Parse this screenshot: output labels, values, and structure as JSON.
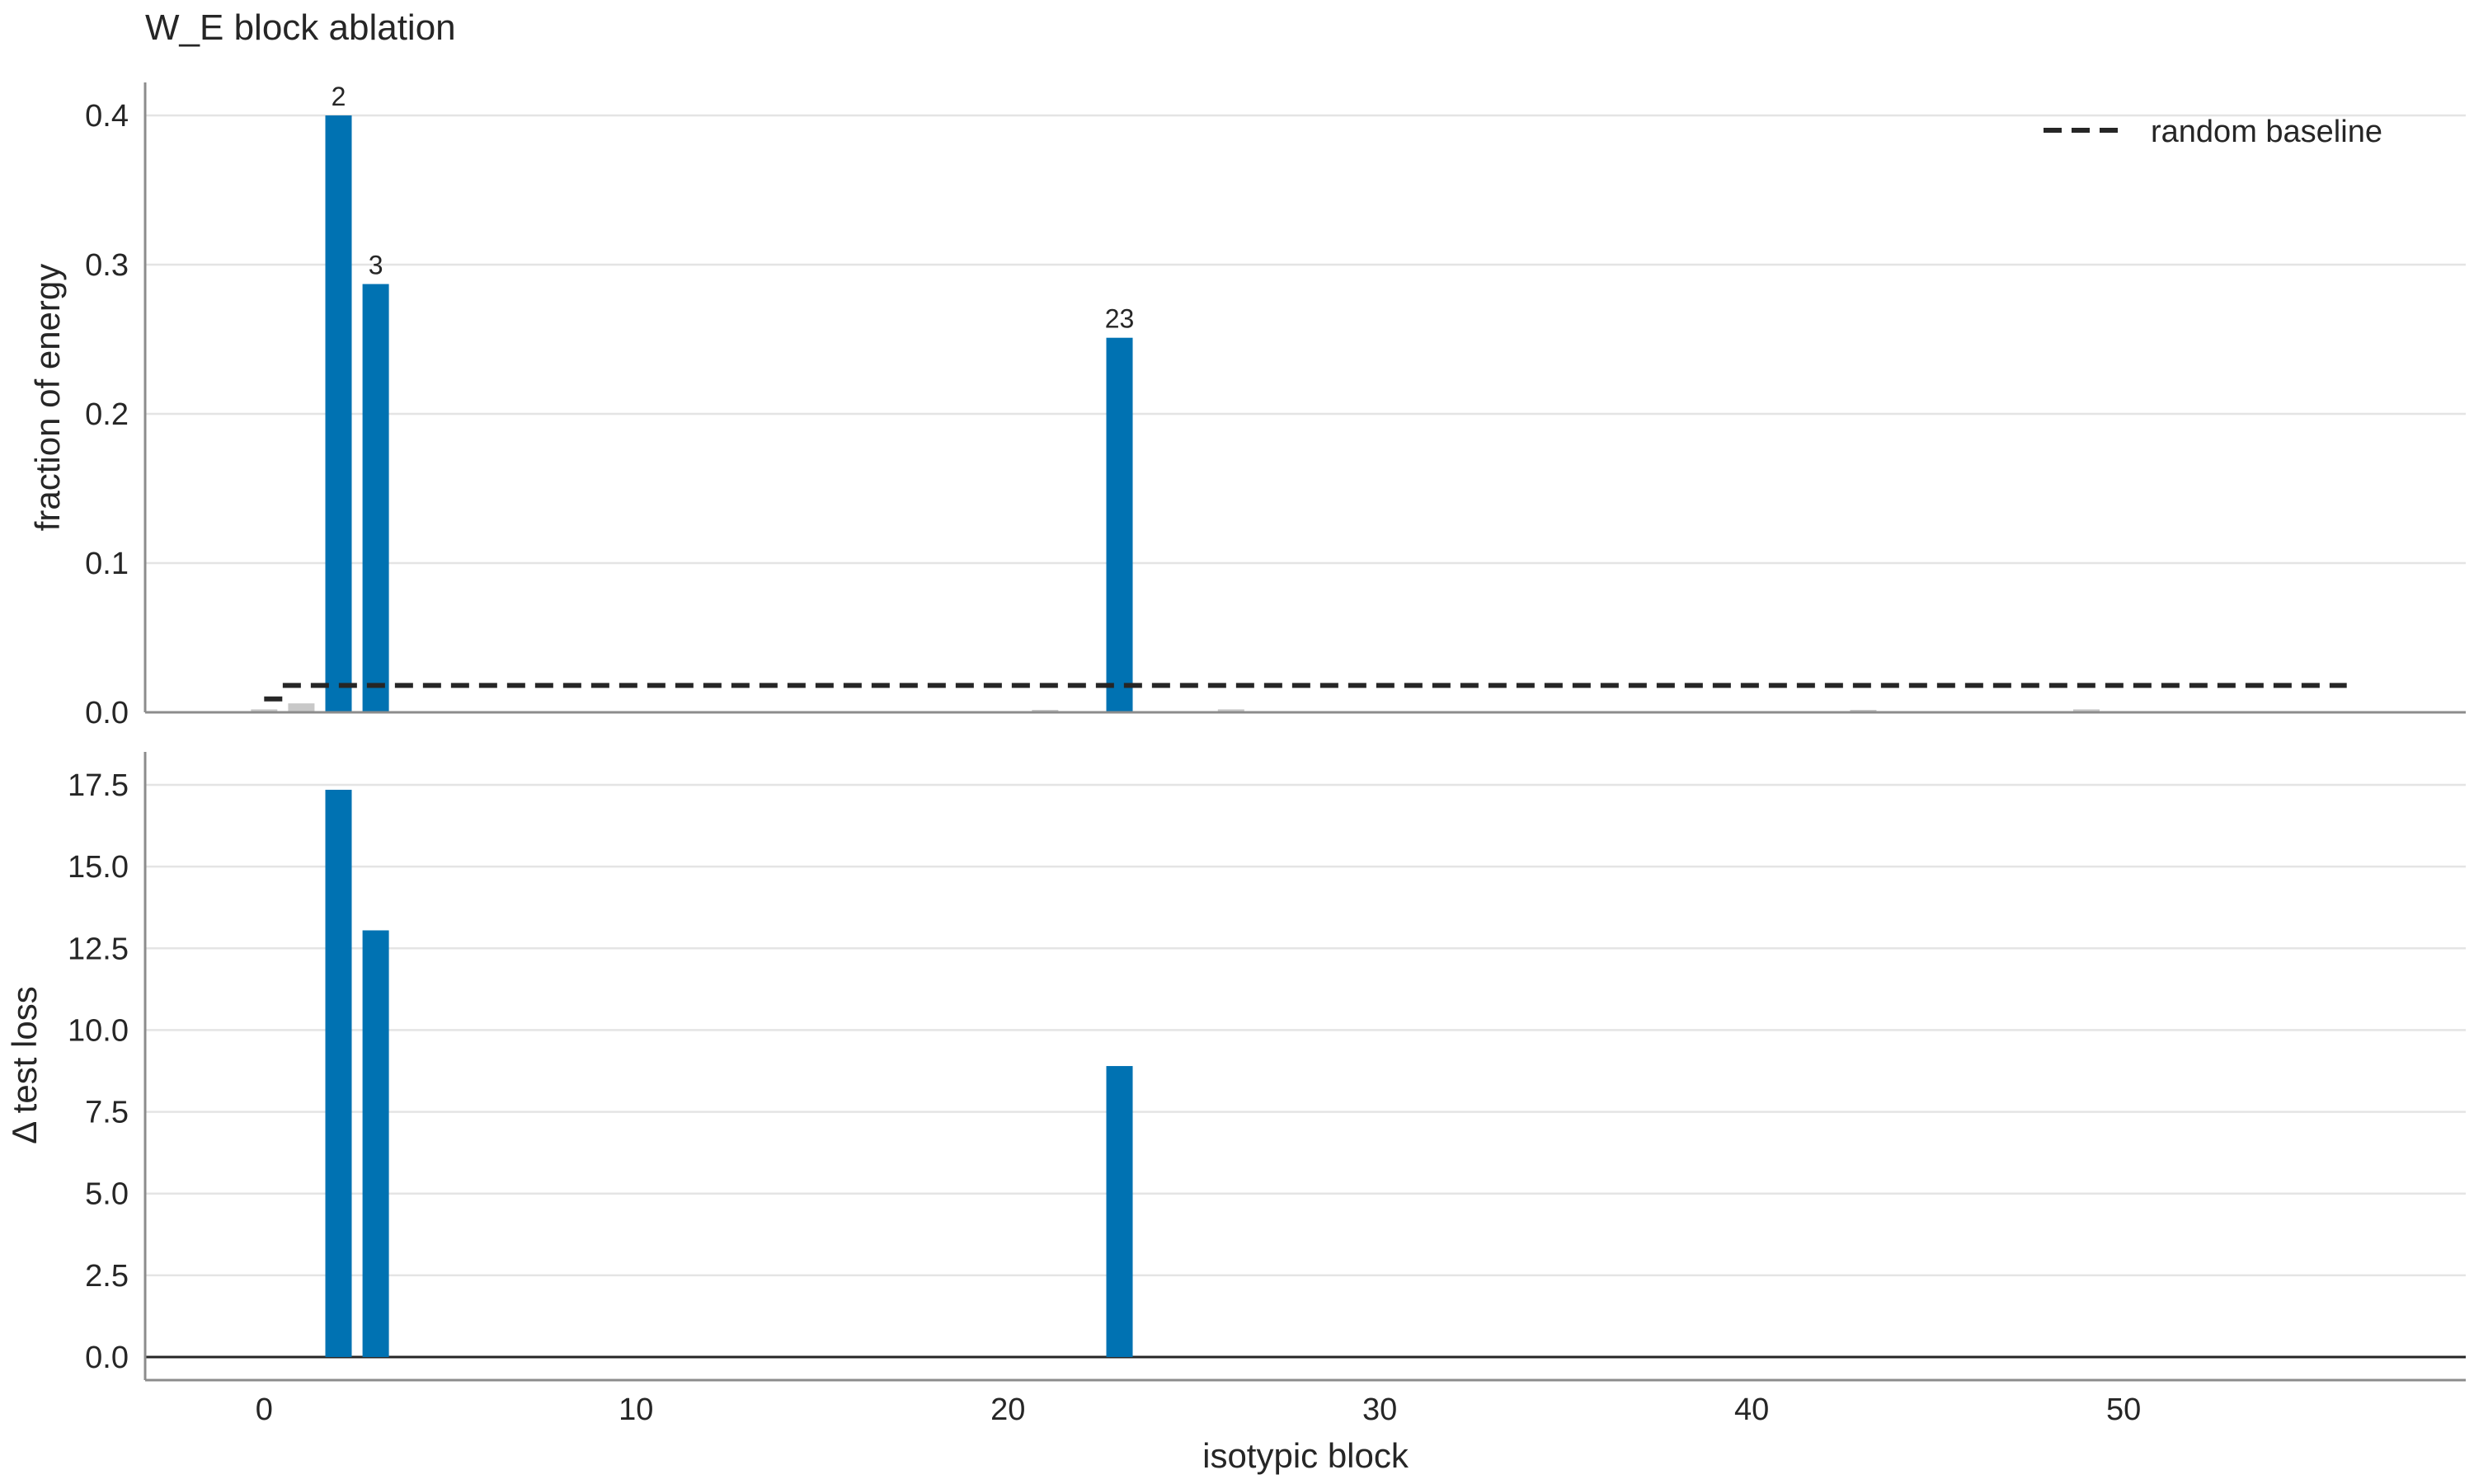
{
  "chart_data": [
    {
      "type": "bar",
      "title": "W_E block ablation",
      "ylabel": "fraction of energy",
      "xlabel": "",
      "xlim": [
        -3.2,
        59.2
      ],
      "ylim": [
        0,
        0.4
      ],
      "yticks": [
        "0.0",
        "0.1",
        "0.2",
        "0.3",
        "0.4"
      ],
      "grid": true,
      "legend": {
        "position": "top-right",
        "entries": [
          "random baseline"
        ]
      },
      "highlight_color": "#0072b2",
      "minor_color": "#c8c8c8",
      "bars": [
        {
          "x": 2,
          "value": 0.4,
          "label": "2",
          "highlight": true
        },
        {
          "x": 3,
          "value": 0.287,
          "label": "3",
          "highlight": true
        },
        {
          "x": 23,
          "value": 0.251,
          "label": "23",
          "highlight": true
        },
        {
          "x": 0,
          "value": 0.002,
          "highlight": false
        },
        {
          "x": 1,
          "value": 0.006,
          "highlight": false
        },
        {
          "x": 21,
          "value": 0.001,
          "highlight": false
        },
        {
          "x": 26,
          "value": 0.002,
          "highlight": false
        },
        {
          "x": 43,
          "value": 0.001,
          "highlight": false
        },
        {
          "x": 49,
          "value": 0.002,
          "highlight": false
        }
      ],
      "baseline": {
        "name": "random baseline",
        "segments": [
          {
            "x": [
              0,
              0.5
            ],
            "y": 0.009
          },
          {
            "x": [
              0.5,
              56
            ],
            "y": 0.018
          }
        ]
      }
    },
    {
      "type": "bar",
      "ylabel": "Δ test loss",
      "xlabel": "isotypic block",
      "xlim": [
        -3.2,
        59.2
      ],
      "ylim": [
        -0.8,
        17.8
      ],
      "yticks": [
        "0.0",
        "2.5",
        "5.0",
        "7.5",
        "10.0",
        "12.5",
        "15.0",
        "17.5"
      ],
      "xticks": [
        "0",
        "10",
        "20",
        "30",
        "40",
        "50"
      ],
      "grid": true,
      "zero_line": true,
      "bars": [
        {
          "x": 2,
          "value": 17.35
        },
        {
          "x": 3,
          "value": 13.05
        },
        {
          "x": 23,
          "value": 8.9
        }
      ]
    }
  ]
}
